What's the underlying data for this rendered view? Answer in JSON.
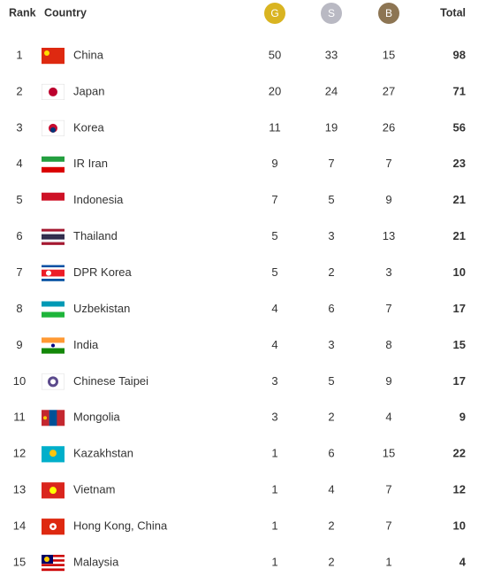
{
  "table": {
    "header": [
      "Rank",
      "Country",
      "G",
      "S",
      "B",
      "Total"
    ],
    "rows": [
      [
        1,
        "China",
        50,
        33,
        15,
        98
      ],
      [
        2,
        "Japan",
        20,
        24,
        27,
        71
      ],
      [
        3,
        "Korea",
        11,
        19,
        26,
        56
      ],
      [
        4,
        "IR Iran",
        9,
        7,
        7,
        23
      ],
      [
        5,
        "Indonesia",
        7,
        5,
        9,
        21
      ],
      [
        6,
        "Thailand",
        5,
        3,
        13,
        21
      ],
      [
        7,
        "DPR Korea",
        5,
        2,
        3,
        10
      ],
      [
        8,
        "Uzbekistan",
        4,
        6,
        7,
        17
      ],
      [
        9,
        "India",
        4,
        3,
        8,
        15
      ],
      [
        10,
        "Chinese Taipei",
        3,
        5,
        9,
        17
      ],
      [
        11,
        "Mongolia",
        3,
        2,
        4,
        9
      ],
      [
        12,
        "Kazakhstan",
        1,
        6,
        15,
        22
      ],
      [
        13,
        "Vietnam",
        1,
        4,
        7,
        12
      ],
      [
        14,
        "Hong Kong, China",
        1,
        2,
        7,
        10
      ],
      [
        15,
        "Malaysia",
        1,
        2,
        1,
        4
      ]
    ]
  }
}
